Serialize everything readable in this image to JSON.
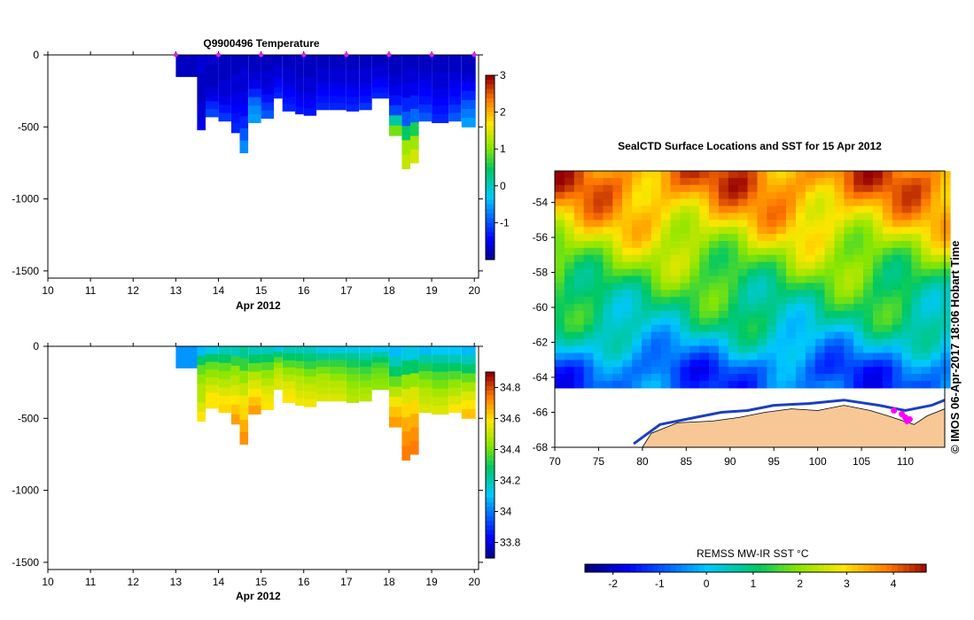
{
  "top_panel": {
    "title": "Q9900496  Temperature",
    "xlabel": "Apr 2012"
  },
  "bottom_panel": {
    "xlabel": "Apr 2012"
  },
  "map_panel": {
    "title": "SealCTD Surface Locations and SST for 15 Apr 2012",
    "credit": "© IMOS 06-Apr-2017 18:06 Hobart Time",
    "colorbar_label": "REMSS MW-IR SST °C"
  },
  "chart_data": [
    {
      "type": "heatmap",
      "name": "temperature-section",
      "title": "Q9900496  Temperature",
      "xlabel": "Apr 2012",
      "ylabel": "",
      "x_ticks": [
        "10",
        "11",
        "12",
        "13",
        "14",
        "15",
        "16",
        "17",
        "18",
        "19",
        "20"
      ],
      "y_ticks": [
        "0",
        "-500",
        "-1000",
        "-1500"
      ],
      "xlim": [
        10,
        20.1
      ],
      "ylim": [
        -1550,
        0
      ],
      "colorbar": {
        "min": -2,
        "max": 3,
        "ticks": [
          "3",
          "2",
          "1",
          "0",
          "-1"
        ]
      },
      "profile_markers_day": [
        13,
        14,
        15,
        16,
        17,
        18,
        19,
        20
      ],
      "profiles": [
        {
          "day": 13.0,
          "depth": 150,
          "v": [
            -1.7
          ]
        },
        {
          "day": 13.5,
          "depth": 520,
          "v": [
            -1.6,
            -1.6,
            -1.7,
            -1.7,
            -1.7,
            -1.6,
            -1.6,
            -1.5
          ]
        },
        {
          "day": 13.7,
          "depth": 430,
          "v": [
            -1.6,
            -1.7,
            -1.7,
            -1.7,
            -1.6,
            -1.5,
            -1.2,
            -1.0
          ]
        },
        {
          "day": 14.0,
          "depth": 460,
          "v": [
            -1.7,
            -1.7,
            -1.7,
            -1.6,
            -1.6,
            -1.5,
            -1.3,
            -1.1
          ]
        },
        {
          "day": 14.3,
          "depth": 540,
          "v": [
            -1.7,
            -1.7,
            -1.6,
            -1.6,
            -1.5,
            -1.4,
            -1.3,
            -1.2
          ]
        },
        {
          "day": 14.5,
          "depth": 680,
          "v": [
            -1.7,
            -1.6,
            -1.6,
            -1.5,
            -1.4,
            -1.2,
            -0.9,
            -0.6
          ]
        },
        {
          "day": 14.7,
          "depth": 470,
          "v": [
            -1.7,
            -1.7,
            -1.6,
            -1.5,
            -1.2,
            -0.8,
            -0.6,
            -0.5
          ]
        },
        {
          "day": 15.0,
          "depth": 440,
          "v": [
            -1.7,
            -1.7,
            -1.6,
            -1.6,
            -1.5,
            -1.3,
            -1.1,
            -0.9
          ]
        },
        {
          "day": 15.3,
          "depth": 300,
          "v": [
            -1.7,
            -1.7,
            -1.6,
            -1.6,
            -1.5,
            -1.4,
            -1.3,
            -1.2
          ]
        },
        {
          "day": 15.5,
          "depth": 390,
          "v": [
            -1.7,
            -1.7,
            -1.6,
            -1.6,
            -1.5,
            -1.4,
            -1.3,
            -1.2
          ]
        },
        {
          "day": 15.8,
          "depth": 410,
          "v": [
            -1.7,
            -1.7,
            -1.7,
            -1.6,
            -1.6,
            -1.5,
            -1.4,
            -1.3
          ]
        },
        {
          "day": 16.0,
          "depth": 420,
          "v": [
            -1.7,
            -1.7,
            -1.7,
            -1.6,
            -1.6,
            -1.5,
            -1.4,
            -1.3
          ]
        },
        {
          "day": 16.3,
          "depth": 380,
          "v": [
            -1.7,
            -1.7,
            -1.6,
            -1.6,
            -1.5,
            -1.4,
            -1.3,
            -1.2
          ]
        },
        {
          "day": 16.6,
          "depth": 380,
          "v": [
            -1.7,
            -1.7,
            -1.6,
            -1.6,
            -1.5,
            -1.4,
            -1.3,
            -1.2
          ]
        },
        {
          "day": 17.0,
          "depth": 390,
          "v": [
            -1.7,
            -1.7,
            -1.6,
            -1.6,
            -1.5,
            -1.4,
            -1.3,
            -1.2
          ]
        },
        {
          "day": 17.3,
          "depth": 380,
          "v": [
            -1.7,
            -1.7,
            -1.6,
            -1.6,
            -1.5,
            -1.4,
            -1.3,
            -1.1
          ]
        },
        {
          "day": 17.6,
          "depth": 300,
          "v": [
            -1.7,
            -1.7,
            -1.6,
            -1.6,
            -1.5,
            -1.4,
            -1.3,
            -1.2
          ]
        },
        {
          "day": 18.0,
          "depth": 560,
          "v": [
            -1.7,
            -1.7,
            -1.6,
            -1.5,
            -1.3,
            -1.0,
            0.2,
            1.0
          ]
        },
        {
          "day": 18.3,
          "depth": 790,
          "v": [
            -1.7,
            -1.6,
            -1.5,
            -1.2,
            -0.9,
            0.5,
            1.2,
            1.4
          ]
        },
        {
          "day": 18.5,
          "depth": 750,
          "v": [
            -1.7,
            -1.6,
            -1.5,
            -1.2,
            -0.8,
            0.6,
            1.2,
            1.5
          ]
        },
        {
          "day": 18.7,
          "depth": 460,
          "v": [
            -1.7,
            -1.7,
            -1.6,
            -1.5,
            -1.4,
            -1.3,
            -1.1,
            -0.9
          ]
        },
        {
          "day": 19.0,
          "depth": 470,
          "v": [
            -1.7,
            -1.7,
            -1.6,
            -1.6,
            -1.5,
            -1.4,
            -1.3,
            -1.2
          ]
        },
        {
          "day": 19.4,
          "depth": 460,
          "v": [
            -1.7,
            -1.7,
            -1.6,
            -1.5,
            -1.4,
            -1.3,
            -1.1,
            -0.9
          ]
        },
        {
          "day": 19.7,
          "depth": 500,
          "v": [
            -1.7,
            -1.7,
            -1.6,
            -1.4,
            -1.2,
            -0.9,
            -0.7,
            -0.5
          ]
        }
      ]
    },
    {
      "type": "heatmap",
      "name": "salinity-section",
      "title": "",
      "xlabel": "Apr 2012",
      "ylabel": "",
      "x_ticks": [
        "10",
        "11",
        "12",
        "13",
        "14",
        "15",
        "16",
        "17",
        "18",
        "19",
        "20"
      ],
      "y_ticks": [
        "0",
        "-500",
        "-1000",
        "-1500"
      ],
      "xlim": [
        10,
        20.1
      ],
      "ylim": [
        -1550,
        0
      ],
      "colorbar": {
        "min": 33.7,
        "max": 34.9,
        "ticks": [
          "34.8",
          "34.6",
          "34.4",
          "34.2",
          "34",
          "33.8"
        ]
      },
      "profiles": [
        {
          "day": 13.0,
          "depth": 150,
          "v": [
            34.05
          ]
        },
        {
          "day": 13.5,
          "depth": 520,
          "v": [
            34.1,
            34.3,
            34.4,
            34.45,
            34.5,
            34.5,
            34.55,
            34.6
          ]
        },
        {
          "day": 13.7,
          "depth": 430,
          "v": [
            34.15,
            34.3,
            34.4,
            34.45,
            34.5,
            34.55,
            34.6,
            34.6
          ]
        },
        {
          "day": 14.0,
          "depth": 460,
          "v": [
            34.2,
            34.3,
            34.4,
            34.45,
            34.5,
            34.55,
            34.6,
            34.62
          ]
        },
        {
          "day": 14.3,
          "depth": 540,
          "v": [
            34.2,
            34.35,
            34.45,
            34.5,
            34.55,
            34.6,
            34.65,
            34.7
          ]
        },
        {
          "day": 14.5,
          "depth": 680,
          "v": [
            34.25,
            34.35,
            34.45,
            34.52,
            34.58,
            34.62,
            34.68,
            34.72
          ]
        },
        {
          "day": 14.7,
          "depth": 470,
          "v": [
            34.2,
            34.3,
            34.4,
            34.5,
            34.55,
            34.6,
            34.65,
            34.7
          ]
        },
        {
          "day": 15.0,
          "depth": 440,
          "v": [
            34.2,
            34.3,
            34.38,
            34.45,
            34.5,
            34.55,
            34.58,
            34.6
          ]
        },
        {
          "day": 15.3,
          "depth": 300,
          "v": [
            34.15,
            34.28,
            34.38,
            34.45,
            34.5,
            34.52,
            34.55,
            34.55
          ]
        },
        {
          "day": 15.5,
          "depth": 390,
          "v": [
            34.2,
            34.3,
            34.38,
            34.45,
            34.5,
            34.55,
            34.58,
            34.6
          ]
        },
        {
          "day": 15.8,
          "depth": 410,
          "v": [
            34.2,
            34.3,
            34.38,
            34.45,
            34.5,
            34.52,
            34.55,
            34.58
          ]
        },
        {
          "day": 16.0,
          "depth": 420,
          "v": [
            34.2,
            34.28,
            34.35,
            34.42,
            34.48,
            34.52,
            34.55,
            34.58
          ]
        },
        {
          "day": 16.3,
          "depth": 380,
          "v": [
            34.15,
            34.25,
            34.35,
            34.42,
            34.48,
            34.5,
            34.52,
            34.55
          ]
        },
        {
          "day": 16.6,
          "depth": 380,
          "v": [
            34.15,
            34.25,
            34.35,
            34.4,
            34.45,
            34.5,
            34.52,
            34.55
          ]
        },
        {
          "day": 17.0,
          "depth": 390,
          "v": [
            34.15,
            34.25,
            34.32,
            34.38,
            34.42,
            34.45,
            34.48,
            34.5
          ]
        },
        {
          "day": 17.3,
          "depth": 380,
          "v": [
            34.15,
            34.22,
            34.3,
            34.36,
            34.4,
            34.44,
            34.48,
            34.5
          ]
        },
        {
          "day": 17.6,
          "depth": 300,
          "v": [
            34.12,
            34.22,
            34.3,
            34.36,
            34.4,
            34.42,
            34.44,
            34.45
          ]
        },
        {
          "day": 18.0,
          "depth": 560,
          "v": [
            34.1,
            34.2,
            34.3,
            34.4,
            34.5,
            34.58,
            34.65,
            34.7
          ]
        },
        {
          "day": 18.3,
          "depth": 790,
          "v": [
            34.15,
            34.3,
            34.45,
            34.55,
            34.62,
            34.68,
            34.72,
            34.75
          ]
        },
        {
          "day": 18.5,
          "depth": 750,
          "v": [
            34.15,
            34.3,
            34.45,
            34.55,
            34.62,
            34.68,
            34.72,
            34.75
          ]
        },
        {
          "day": 18.7,
          "depth": 460,
          "v": [
            34.1,
            34.22,
            34.32,
            34.4,
            34.45,
            34.5,
            34.52,
            34.55
          ]
        },
        {
          "day": 19.0,
          "depth": 470,
          "v": [
            34.12,
            34.22,
            34.3,
            34.38,
            34.42,
            34.48,
            34.52,
            34.55
          ]
        },
        {
          "day": 19.4,
          "depth": 460,
          "v": [
            34.12,
            34.2,
            34.3,
            34.38,
            34.45,
            34.5,
            34.55,
            34.6
          ]
        },
        {
          "day": 19.7,
          "depth": 500,
          "v": [
            34.1,
            34.2,
            34.3,
            34.4,
            34.48,
            34.55,
            34.6,
            34.65
          ]
        }
      ]
    },
    {
      "type": "heatmap",
      "name": "sst-map",
      "title": "SealCTD Surface Locations and SST for 15 Apr 2012",
      "x_ticks": [
        "70",
        "75",
        "80",
        "85",
        "90",
        "95",
        "100",
        "105",
        "110"
      ],
      "y_ticks": [
        "-54",
        "-56",
        "-58",
        "-60",
        "-62",
        "-64",
        "-66",
        "-68"
      ],
      "lon_range": [
        70,
        114.5
      ],
      "lat_range": [
        -68,
        -52.2
      ],
      "sst_bands_by_lat": [
        {
          "lat": -53,
          "sst": 3.8
        },
        {
          "lat": -55,
          "sst": 3.0
        },
        {
          "lat": -57,
          "sst": 2.0
        },
        {
          "lat": -59,
          "sst": 1.2
        },
        {
          "lat": -61,
          "sst": 0.6
        },
        {
          "lat": -62.5,
          "sst": -0.3
        },
        {
          "lat": -63.5,
          "sst": -1.0
        }
      ],
      "ice_edge_lat": -64.2,
      "surface_locations": [
        {
          "lon": 108.7,
          "lat": -65.9
        },
        {
          "lon": 109.6,
          "lat": -66.1
        },
        {
          "lon": 110.0,
          "lat": -66.3
        },
        {
          "lon": 110.2,
          "lat": -66.5
        },
        {
          "lon": 110.5,
          "lat": -66.4
        }
      ],
      "colorbar": {
        "label": "REMSS MW-IR SST °C",
        "min": -2.6,
        "max": 4.7,
        "ticks": [
          "-2",
          "-1",
          "0",
          "1",
          "2",
          "3",
          "4"
        ]
      }
    }
  ]
}
